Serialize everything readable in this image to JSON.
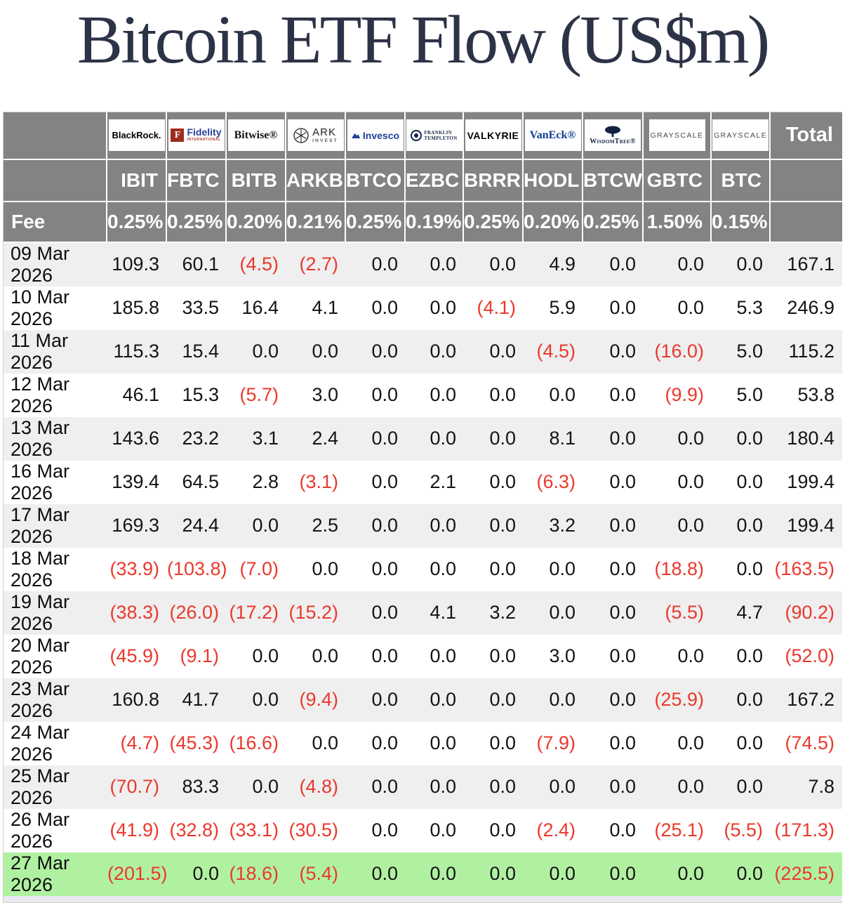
{
  "title": "Bitcoin ETF Flow (US$m)",
  "colors": {
    "header_bg": "#838383",
    "negative_value": "#eb382c",
    "highlight_row_green": "#b0f1a1",
    "stripe_row": "#efefef",
    "title_navy": "#2d3347",
    "partial_next_row": "#e9e9f2"
  },
  "chart_data": {
    "type": "table",
    "title": "Bitcoin ETF Flow (US$m)",
    "fee_label": "Fee",
    "total_label": "Total",
    "providers": [
      {
        "name": "BlackRock",
        "logo_text": "BlackRock.",
        "ticker": "IBIT",
        "fee": "0.25%"
      },
      {
        "name": "Fidelity International",
        "logo_mark": "F",
        "logo_text": "Fidelity",
        "logo_sub": "INTERNATIONAL",
        "ticker": "FBTC",
        "fee": "0.25%"
      },
      {
        "name": "Bitwise",
        "logo_text": "Bitwise®",
        "ticker": "BITB",
        "fee": "0.20%"
      },
      {
        "name": "ARK Invest",
        "logo_text": "ARK",
        "logo_sub": "INVEST",
        "ticker": "ARKB",
        "fee": "0.21%"
      },
      {
        "name": "Invesco",
        "logo_text": "Invesco",
        "ticker": "BTCO",
        "fee": "0.25%"
      },
      {
        "name": "Franklin Templeton",
        "logo_text": "FRANKLIN",
        "logo_sub": "TEMPLETON",
        "ticker": "EZBC",
        "fee": "0.19%"
      },
      {
        "name": "Valkyrie",
        "logo_text": "VALKYRIE",
        "ticker": "BRRR",
        "fee": "0.25%"
      },
      {
        "name": "VanEck",
        "logo_text": "VanEck®",
        "ticker": "HODL",
        "fee": "0.20%"
      },
      {
        "name": "WisdomTree",
        "logo_text": "WisdomTree®",
        "ticker": "BTCW",
        "fee": "0.25%"
      },
      {
        "name": "Grayscale",
        "logo_text": "GRAYSCALE",
        "ticker": "GBTC",
        "fee": "1.50%"
      },
      {
        "name": "Grayscale",
        "logo_text": "GRAYSCALE",
        "ticker": "BTC",
        "fee": "0.15%"
      }
    ],
    "rows": [
      {
        "date": "09 Mar 2026",
        "values": [
          "109.3",
          "60.1",
          "(4.5)",
          "(2.7)",
          "0.0",
          "0.0",
          "0.0",
          "4.9",
          "0.0",
          "0.0",
          "0.0"
        ],
        "total": "167.1",
        "highlight": false
      },
      {
        "date": "10 Mar 2026",
        "values": [
          "185.8",
          "33.5",
          "16.4",
          "4.1",
          "0.0",
          "0.0",
          "(4.1)",
          "5.9",
          "0.0",
          "0.0",
          "5.3"
        ],
        "total": "246.9",
        "highlight": false
      },
      {
        "date": "11 Mar 2026",
        "values": [
          "115.3",
          "15.4",
          "0.0",
          "0.0",
          "0.0",
          "0.0",
          "0.0",
          "(4.5)",
          "0.0",
          "(16.0)",
          "5.0"
        ],
        "total": "115.2",
        "highlight": false
      },
      {
        "date": "12 Mar 2026",
        "values": [
          "46.1",
          "15.3",
          "(5.7)",
          "3.0",
          "0.0",
          "0.0",
          "0.0",
          "0.0",
          "0.0",
          "(9.9)",
          "5.0"
        ],
        "total": "53.8",
        "highlight": false
      },
      {
        "date": "13 Mar 2026",
        "values": [
          "143.6",
          "23.2",
          "3.1",
          "2.4",
          "0.0",
          "0.0",
          "0.0",
          "8.1",
          "0.0",
          "0.0",
          "0.0"
        ],
        "total": "180.4",
        "highlight": false
      },
      {
        "date": "16 Mar 2026",
        "values": [
          "139.4",
          "64.5",
          "2.8",
          "(3.1)",
          "0.0",
          "2.1",
          "0.0",
          "(6.3)",
          "0.0",
          "0.0",
          "0.0"
        ],
        "total": "199.4",
        "highlight": false
      },
      {
        "date": "17 Mar 2026",
        "values": [
          "169.3",
          "24.4",
          "0.0",
          "2.5",
          "0.0",
          "0.0",
          "0.0",
          "3.2",
          "0.0",
          "0.0",
          "0.0"
        ],
        "total": "199.4",
        "highlight": false
      },
      {
        "date": "18 Mar 2026",
        "values": [
          "(33.9)",
          "(103.8)",
          "(7.0)",
          "0.0",
          "0.0",
          "0.0",
          "0.0",
          "0.0",
          "0.0",
          "(18.8)",
          "0.0"
        ],
        "total": "(163.5)",
        "highlight": false
      },
      {
        "date": "19 Mar 2026",
        "values": [
          "(38.3)",
          "(26.0)",
          "(17.2)",
          "(15.2)",
          "0.0",
          "4.1",
          "3.2",
          "0.0",
          "0.0",
          "(5.5)",
          "4.7"
        ],
        "total": "(90.2)",
        "highlight": false
      },
      {
        "date": "20 Mar 2026",
        "values": [
          "(45.9)",
          "(9.1)",
          "0.0",
          "0.0",
          "0.0",
          "0.0",
          "0.0",
          "3.0",
          "0.0",
          "0.0",
          "0.0"
        ],
        "total": "(52.0)",
        "highlight": false
      },
      {
        "date": "23 Mar 2026",
        "values": [
          "160.8",
          "41.7",
          "0.0",
          "(9.4)",
          "0.0",
          "0.0",
          "0.0",
          "0.0",
          "0.0",
          "(25.9)",
          "0.0"
        ],
        "total": "167.2",
        "highlight": false
      },
      {
        "date": "24 Mar 2026",
        "values": [
          "(4.7)",
          "(45.3)",
          "(16.6)",
          "0.0",
          "0.0",
          "0.0",
          "0.0",
          "(7.9)",
          "0.0",
          "0.0",
          "0.0"
        ],
        "total": "(74.5)",
        "highlight": false
      },
      {
        "date": "25 Mar 2026",
        "values": [
          "(70.7)",
          "83.3",
          "0.0",
          "(4.8)",
          "0.0",
          "0.0",
          "0.0",
          "0.0",
          "0.0",
          "0.0",
          "0.0"
        ],
        "total": "7.8",
        "highlight": false
      },
      {
        "date": "26 Mar 2026",
        "values": [
          "(41.9)",
          "(32.8)",
          "(33.1)",
          "(30.5)",
          "0.0",
          "0.0",
          "0.0",
          "(2.4)",
          "0.0",
          "(25.1)",
          "(5.5)"
        ],
        "total": "(171.3)",
        "highlight": false
      },
      {
        "date": "27 Mar 2026",
        "values": [
          "(201.5)",
          "0.0",
          "(18.6)",
          "(5.4)",
          "0.0",
          "0.0",
          "0.0",
          "0.0",
          "0.0",
          "0.0",
          "0.0"
        ],
        "total": "(225.5)",
        "highlight": true
      }
    ]
  }
}
